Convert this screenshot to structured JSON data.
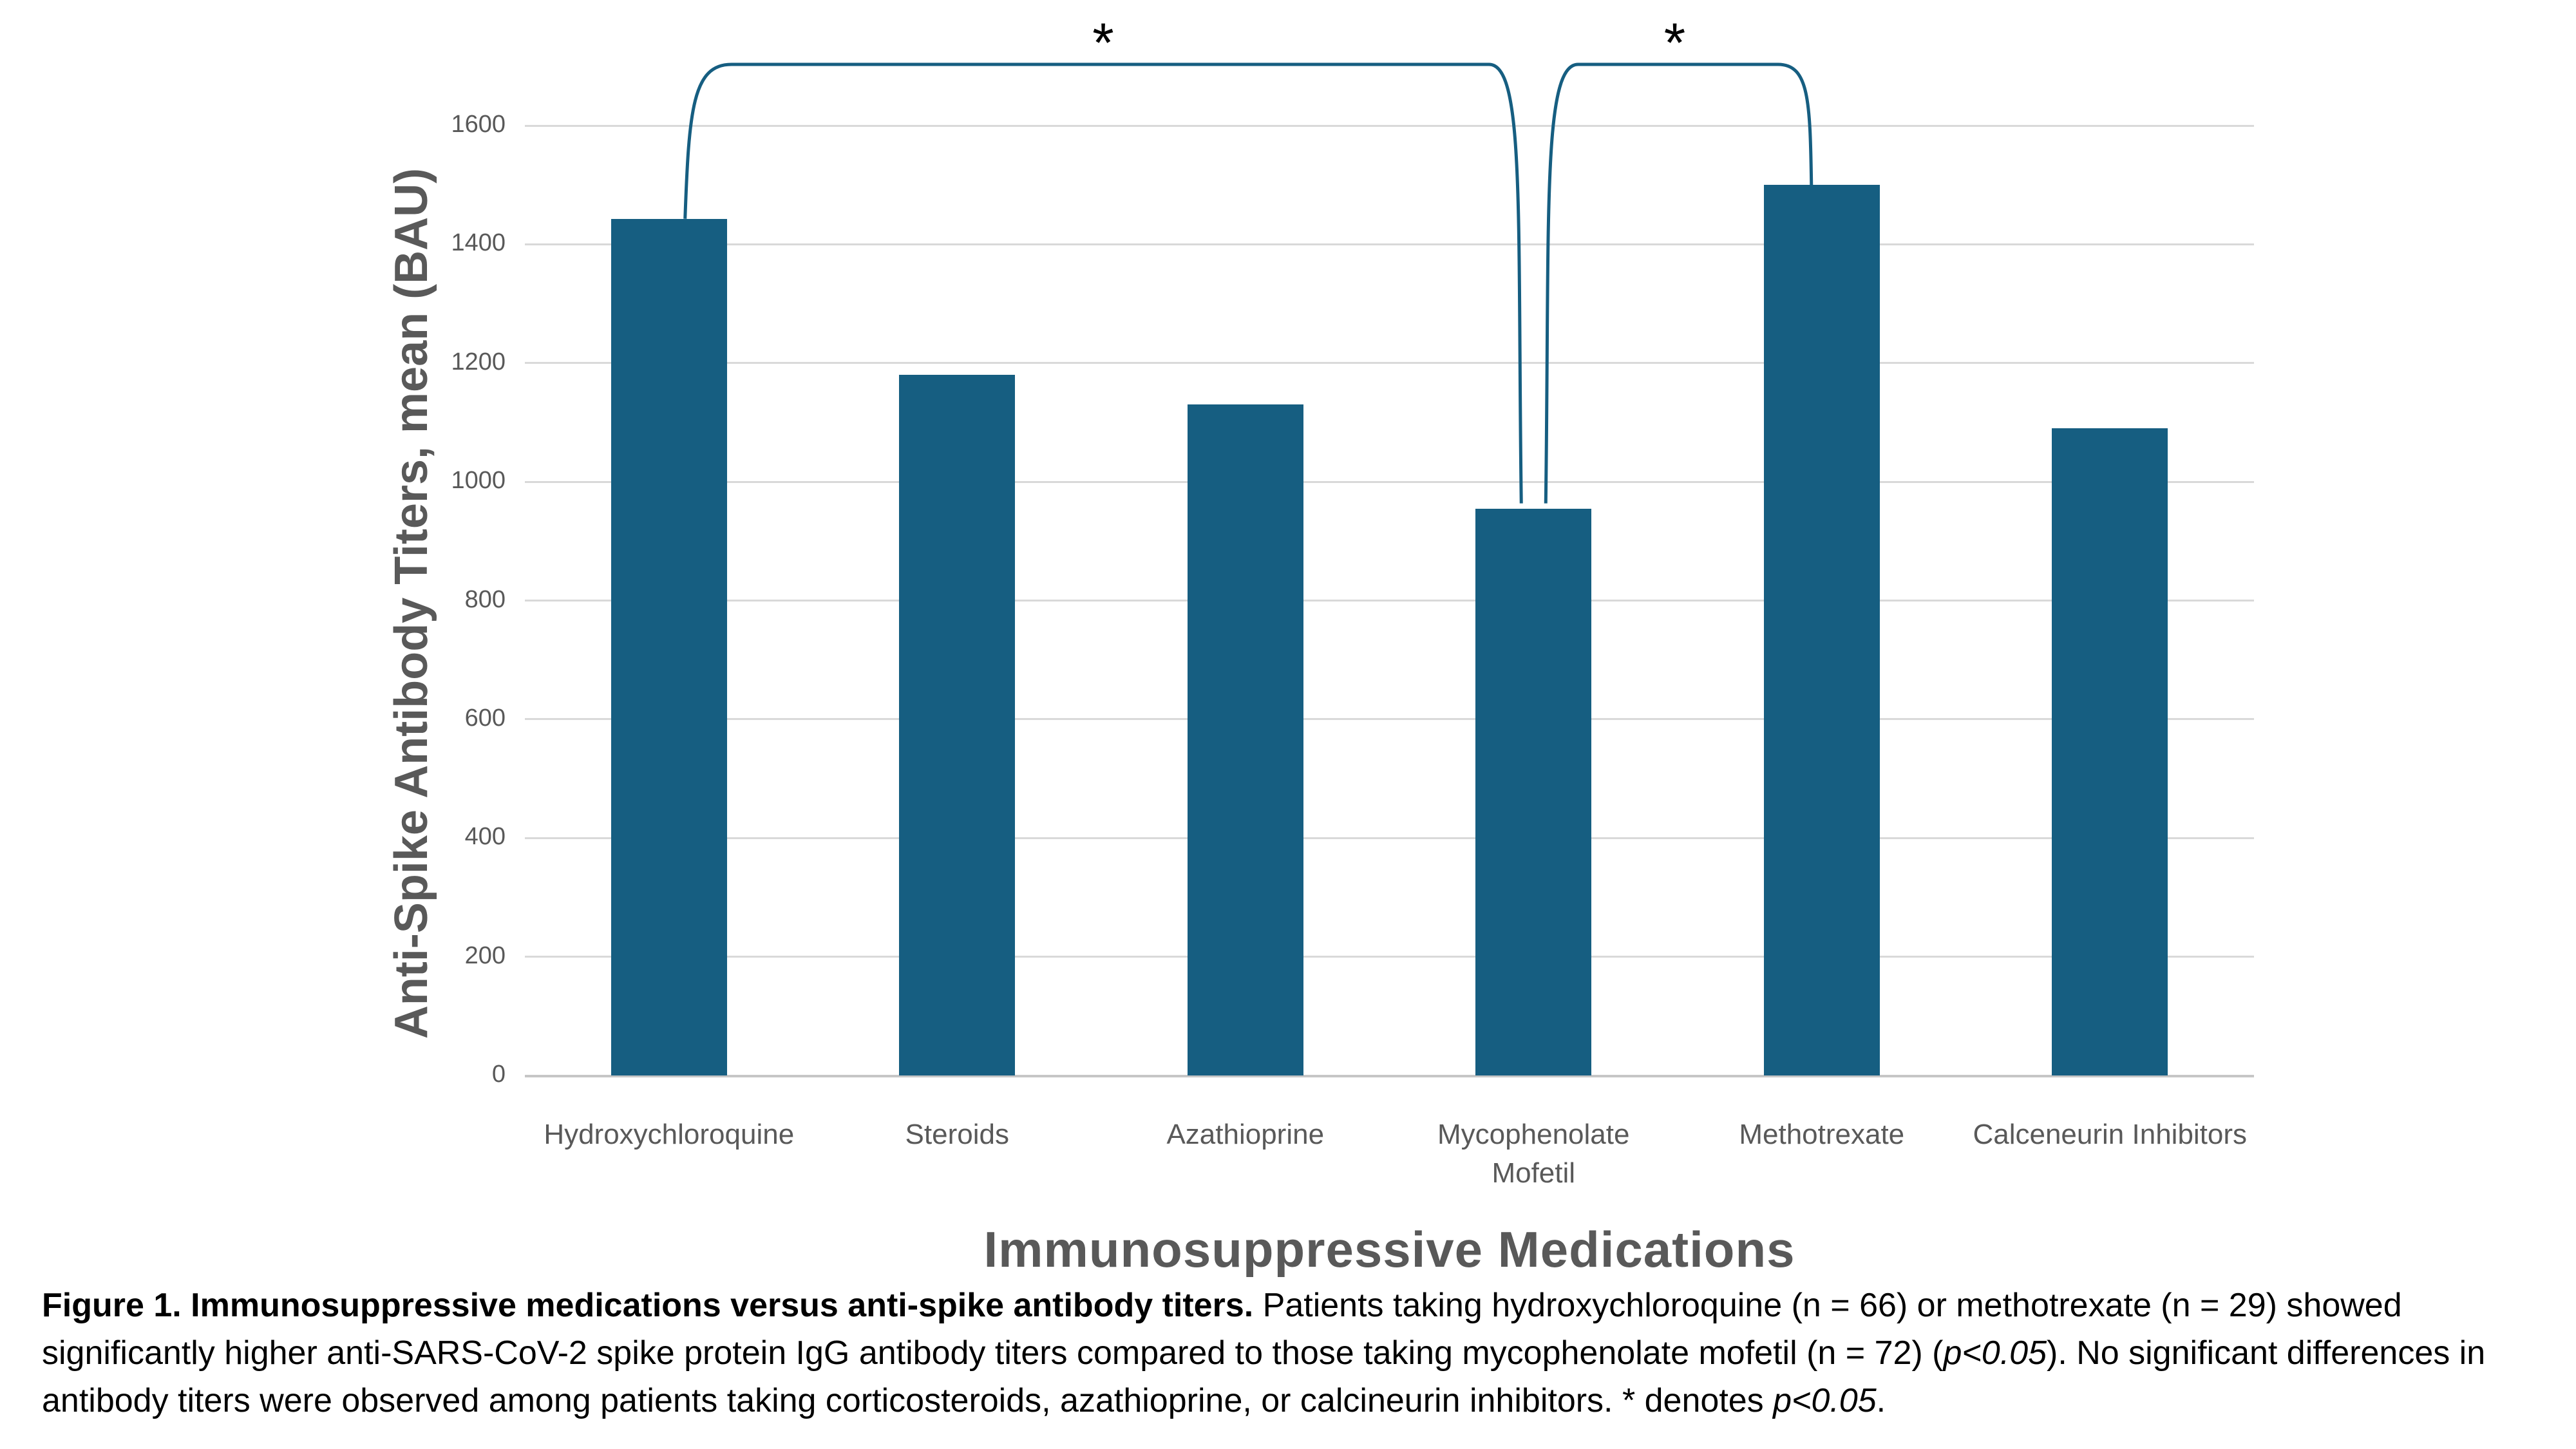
{
  "chart_data": {
    "type": "bar",
    "categories": [
      "Hydroxychloroquine",
      "Steroids",
      "Azathioprine",
      "Mycophenolate Mofetil",
      "Methotrexate",
      "Calceneurin Inhibitors"
    ],
    "values": [
      1443,
      1180,
      1130,
      955,
      1500,
      1090
    ],
    "title": "",
    "xlabel": "Immunosuppressive Medications",
    "ylabel": "Anti-Spike Antibody Titers, mean (BAU)",
    "ylim": [
      0,
      1600
    ],
    "yticks": [
      0,
      200,
      400,
      600,
      800,
      1000,
      1200,
      1400,
      1600
    ],
    "grid": "horizontal",
    "legend": "none",
    "bar_color": "#165e81",
    "bracket_color": "#165e81",
    "gridline_color": "#d9d9d9",
    "axis_text_color": "#595959",
    "significance": [
      {
        "label": "*",
        "from_index": 0,
        "to_index": 3
      },
      {
        "label": "*",
        "from_index": 3,
        "to_index": 4
      }
    ]
  },
  "caption": {
    "bold_intro": "Figure 1. Immunosuppressive medications versus anti-spike antibody titers.",
    "body1": " Patients taking hydroxychloroquine (n = 66) or methotrexate (n = 29) showed significantly higher anti-SARS-CoV-2 spike protein IgG antibody titers compared to those taking mycophenolate mofetil (n = 72) (",
    "p1": "p<0.05",
    "body2": "). No significant differences in antibody titers were observed among patients taking corticosteroids, azathioprine, or calcineurin inhibitors. * denotes ",
    "p2": "p<0.05",
    "end": "."
  }
}
